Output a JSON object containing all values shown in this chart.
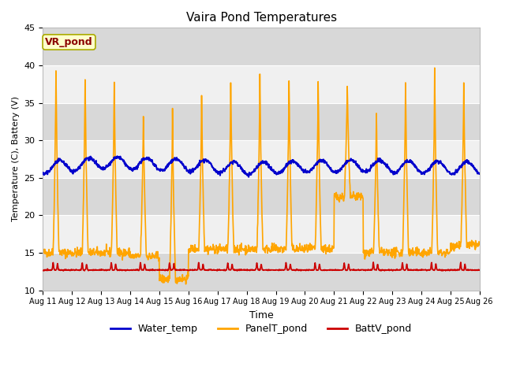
{
  "title": "Vaira Pond Temperatures",
  "ylabel": "Temperature (C), Battery (V)",
  "xlabel": "Time",
  "annotation": "VR_pond",
  "ylim": [
    10,
    45
  ],
  "yticks": [
    10,
    15,
    20,
    25,
    30,
    35,
    40,
    45
  ],
  "x_labels": [
    "Aug 11",
    "Aug 12",
    "Aug 13",
    "Aug 14",
    "Aug 15",
    "Aug 16",
    "Aug 17",
    "Aug 18",
    "Aug 19",
    "Aug 20",
    "Aug 21",
    "Aug 22",
    "Aug 23",
    "Aug 24",
    "Aug 25",
    "Aug 26"
  ],
  "water_color": "#0000cc",
  "panel_color": "#ffa500",
  "batt_color": "#cc0000",
  "bg_color": "#e8e8e8",
  "bg_band_light": "#f0f0f0",
  "bg_band_dark": "#d8d8d8",
  "legend_labels": [
    "Water_temp",
    "PanelT_pond",
    "BattV_pond"
  ],
  "daily_panel_peaks": [
    42,
    41,
    40,
    35.5,
    36.5,
    38.0,
    40.0,
    41.0,
    40.5,
    40.0,
    39.0,
    35.5,
    40.0,
    41.5,
    39.5
  ],
  "daily_panel_mins": [
    15.0,
    15.0,
    15.0,
    14.5,
    11.5,
    15.5,
    15.5,
    15.5,
    15.5,
    15.5,
    22.5,
    15.0,
    15.0,
    15.0,
    16.0
  ]
}
